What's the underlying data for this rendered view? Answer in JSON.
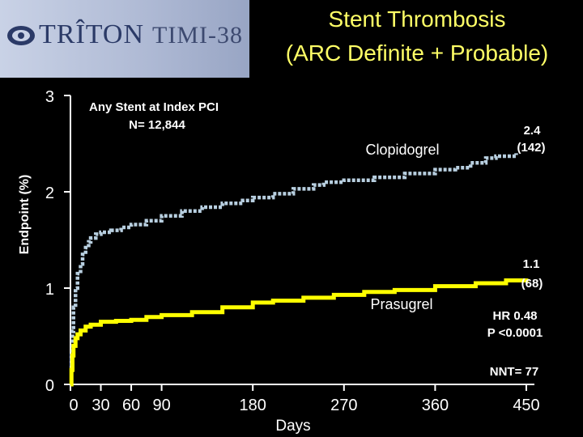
{
  "header": {
    "logo_text": "TRÎTON",
    "logo_text2": "TIMI-38",
    "title_line1": "Stent Thrombosis",
    "title_line2": "(ARC Definite + Probable)"
  },
  "colors": {
    "background": "#000000",
    "title": "#ffff66",
    "clopidogrel": "#b8cfe0",
    "prasugrel": "#ffff00",
    "text": "#ffffff"
  },
  "chart_data": {
    "type": "line",
    "xlabel": "Days",
    "ylabel": "Endpoint (%)",
    "xlim": [
      0,
      450
    ],
    "ylim": [
      0,
      3
    ],
    "x_ticks": [
      0,
      30,
      60,
      90,
      180,
      270,
      360,
      450
    ],
    "y_ticks": [
      0,
      1,
      2,
      3
    ],
    "grid": false,
    "annotations": {
      "population": [
        "Any Stent at Index PCI",
        "N= 12,844"
      ],
      "clopidogrel_value": [
        "2.4",
        "(142)"
      ],
      "prasugrel_value": [
        "1.1",
        "(68)"
      ],
      "hr": [
        "HR 0.48",
        "P <0.0001"
      ],
      "nnt": "NNT= 77"
    },
    "series": [
      {
        "name": "Clopidogrel",
        "style": "dotted",
        "x": [
          0,
          1,
          2,
          3,
          5,
          7,
          10,
          12,
          15,
          18,
          20,
          25,
          30,
          40,
          50,
          60,
          75,
          90,
          110,
          130,
          150,
          170,
          180,
          200,
          220,
          240,
          250,
          270,
          300,
          330,
          360,
          380,
          395,
          410,
          420,
          440
        ],
        "y": [
          0,
          0.3,
          0.55,
          0.8,
          1.0,
          1.15,
          1.25,
          1.35,
          1.42,
          1.48,
          1.52,
          1.56,
          1.58,
          1.6,
          1.63,
          1.66,
          1.7,
          1.75,
          1.8,
          1.84,
          1.88,
          1.91,
          1.94,
          1.98,
          2.03,
          2.07,
          2.1,
          2.12,
          2.15,
          2.19,
          2.23,
          2.25,
          2.3,
          2.35,
          2.37,
          2.4
        ]
      },
      {
        "name": "Prasugrel",
        "style": "solid",
        "x": [
          0,
          1,
          2,
          3,
          5,
          7,
          10,
          15,
          20,
          30,
          45,
          60,
          75,
          90,
          120,
          150,
          180,
          200,
          230,
          260,
          290,
          320,
          360,
          400,
          430,
          450
        ],
        "y": [
          0,
          0.15,
          0.3,
          0.4,
          0.48,
          0.52,
          0.56,
          0.6,
          0.62,
          0.65,
          0.66,
          0.67,
          0.7,
          0.72,
          0.75,
          0.8,
          0.85,
          0.87,
          0.9,
          0.93,
          0.96,
          0.98,
          1.02,
          1.05,
          1.08,
          1.1
        ]
      }
    ]
  }
}
